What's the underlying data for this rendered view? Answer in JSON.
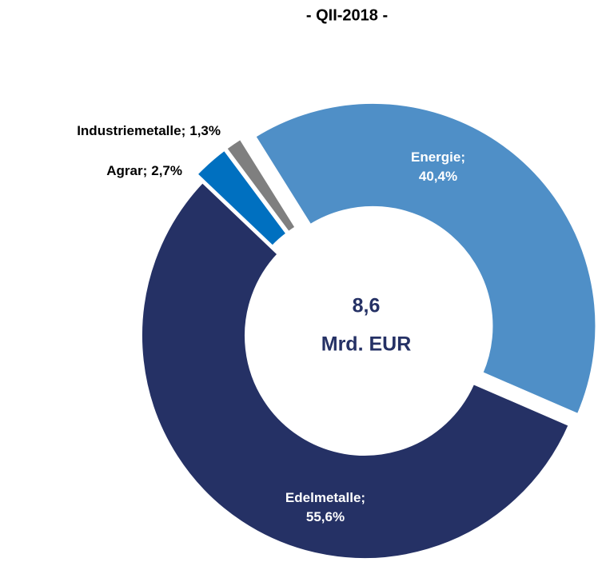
{
  "chart_data": {
    "type": "donut",
    "title": "- QII-2018 -",
    "categories": [
      "Energie;",
      "Edelmetalle;",
      "Agrar;",
      "Industriemetalle;"
    ],
    "values": [
      40.4,
      55.6,
      2.7,
      1.3
    ],
    "value_labels": [
      "40,4%",
      "55,6%",
      "2,7%",
      "1,3%"
    ],
    "colors": [
      "#4f8fc7",
      "#253165",
      "#0070c0",
      "#7f7f7f"
    ],
    "center_text": [
      "8,6",
      "Mrd. EUR"
    ]
  }
}
